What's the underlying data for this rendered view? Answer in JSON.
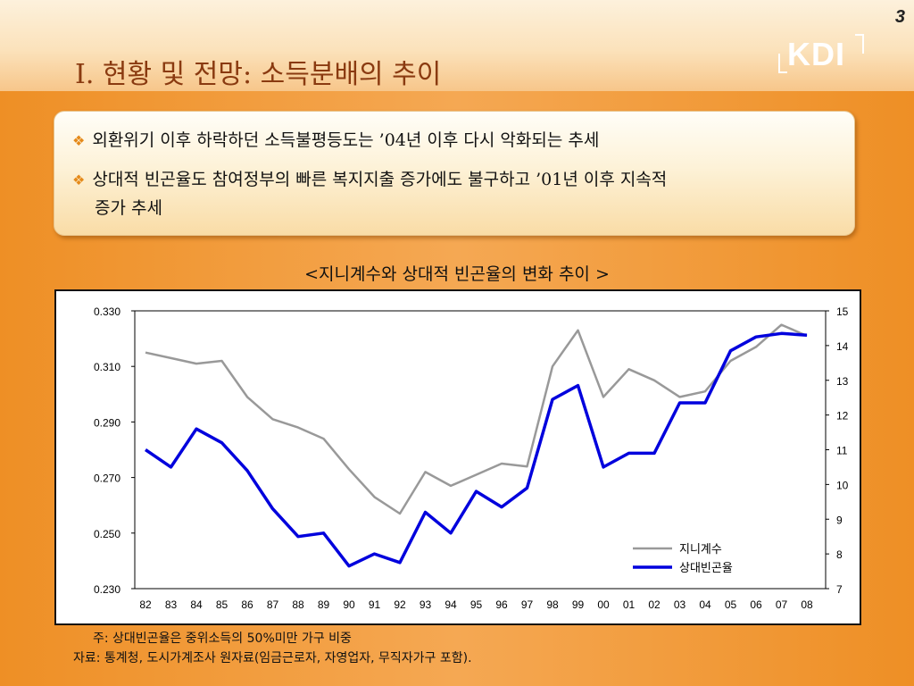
{
  "page_number": "3",
  "logo_text": "KDI",
  "title": "I. 현황 및 전망: 소득분배의 추이",
  "bullets": [
    "외환위기 이후 하락하던 소득불평등도는 ’04년 이후 다시 악화되는 추세",
    "상대적 빈곤율도 참여정부의 빠른 복지지출 증가에도 불구하고 ’01년 이후 지속적",
    "증가 추세"
  ],
  "bullet_mark": "❖",
  "colors": {
    "title": "#8a3a10",
    "gini_line": "#999999",
    "poverty_line": "#0000dd",
    "accent": "#f0952c"
  },
  "chart_data": {
    "type": "line",
    "title": "<지니계수와 상대적 빈곤율의 변화 추이 >",
    "categories": [
      "82",
      "83",
      "84",
      "85",
      "86",
      "87",
      "88",
      "89",
      "90",
      "91",
      "92",
      "93",
      "94",
      "95",
      "96",
      "97",
      "98",
      "99",
      "00",
      "01",
      "02",
      "03",
      "04",
      "05",
      "06",
      "07",
      "08"
    ],
    "y_left": {
      "ticks": [
        "0.330",
        "0.310",
        "0.290",
        "0.270",
        "0.250",
        "0.230"
      ],
      "lim": [
        0.23,
        0.33
      ]
    },
    "y_right": {
      "ticks": [
        "15",
        "14",
        "13",
        "12",
        "11",
        "10",
        "9",
        "8",
        "7"
      ],
      "lim": [
        7,
        15
      ]
    },
    "series": [
      {
        "name": "지니계수",
        "axis": "left",
        "color": "#999999",
        "values": [
          0.315,
          0.313,
          0.311,
          0.312,
          0.299,
          0.291,
          0.288,
          0.284,
          0.273,
          0.263,
          0.257,
          0.272,
          0.267,
          0.271,
          0.275,
          0.274,
          0.31,
          0.323,
          0.299,
          0.309,
          0.305,
          0.299,
          0.301,
          0.312,
          0.317,
          0.325,
          0.321
        ]
      },
      {
        "name": "상대빈곤율",
        "axis": "right",
        "color": "#0000dd",
        "values": [
          11.0,
          10.5,
          11.6,
          11.2,
          10.4,
          9.3,
          8.5,
          8.6,
          7.65,
          8.0,
          7.75,
          9.2,
          8.6,
          9.8,
          9.35,
          9.9,
          12.45,
          12.85,
          10.5,
          10.9,
          10.9,
          12.35,
          12.35,
          13.85,
          14.25,
          14.35,
          14.3
        ]
      }
    ],
    "legend_position": "bottom-right"
  },
  "notes": [
    "주: 상대빈곤율은 중위소득의 50%미만 가구 비중",
    "자료: 통계청, 도시가계조사 원자료(임금근로자, 자영업자, 무직자가구 포함)."
  ]
}
